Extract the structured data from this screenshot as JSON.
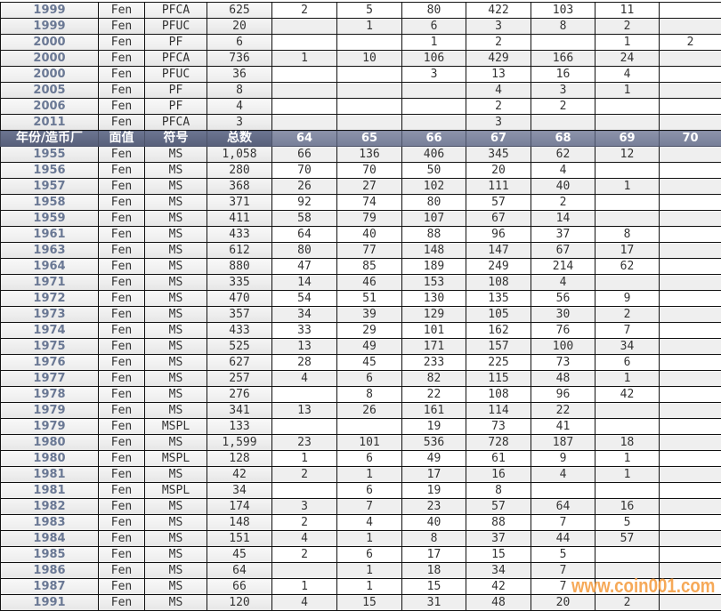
{
  "table": {
    "top_rows": [
      [
        "1999",
        "Fen",
        "PFCA",
        "625",
        "2",
        "5",
        "80",
        "422",
        "103",
        "11",
        ""
      ],
      [
        "1999",
        "Fen",
        "PFUC",
        "20",
        "",
        "1",
        "6",
        "3",
        "8",
        "2",
        ""
      ],
      [
        "2000",
        "Fen",
        "PF",
        "6",
        "",
        "",
        "1",
        "2",
        "",
        "1",
        "2"
      ],
      [
        "2000",
        "Fen",
        "PFCA",
        "736",
        "1",
        "10",
        "106",
        "429",
        "166",
        "24",
        ""
      ],
      [
        "2000",
        "Fen",
        "PFUC",
        "36",
        "",
        "",
        "3",
        "13",
        "16",
        "4",
        ""
      ],
      [
        "2005",
        "Fen",
        "PF",
        "8",
        "",
        "",
        "",
        "4",
        "3",
        "1",
        ""
      ],
      [
        "2006",
        "Fen",
        "PF",
        "4",
        "",
        "",
        "",
        "2",
        "2",
        "",
        ""
      ],
      [
        "2011",
        "Fen",
        "PFCA",
        "3",
        "",
        "",
        "",
        "3",
        "",
        "",
        ""
      ]
    ],
    "header": [
      "年份/造币厂",
      "面值",
      "符号",
      "总数",
      "64",
      "65",
      "66",
      "67",
      "68",
      "69",
      "70"
    ],
    "bottom_rows": [
      [
        "1955",
        "Fen",
        "MS",
        "1,058",
        "66",
        "136",
        "406",
        "345",
        "62",
        "12",
        ""
      ],
      [
        "1956",
        "Fen",
        "MS",
        "280",
        "70",
        "70",
        "50",
        "20",
        "4",
        "",
        ""
      ],
      [
        "1957",
        "Fen",
        "MS",
        "368",
        "26",
        "27",
        "102",
        "111",
        "40",
        "1",
        ""
      ],
      [
        "1958",
        "Fen",
        "MS",
        "371",
        "92",
        "74",
        "80",
        "57",
        "2",
        "",
        ""
      ],
      [
        "1959",
        "Fen",
        "MS",
        "411",
        "58",
        "79",
        "107",
        "67",
        "14",
        "",
        ""
      ],
      [
        "1961",
        "Fen",
        "MS",
        "433",
        "64",
        "40",
        "88",
        "96",
        "37",
        "8",
        ""
      ],
      [
        "1963",
        "Fen",
        "MS",
        "612",
        "80",
        "77",
        "148",
        "147",
        "67",
        "17",
        ""
      ],
      [
        "1964",
        "Fen",
        "MS",
        "880",
        "47",
        "85",
        "189",
        "249",
        "214",
        "62",
        ""
      ],
      [
        "1971",
        "Fen",
        "MS",
        "335",
        "14",
        "46",
        "153",
        "108",
        "4",
        "",
        ""
      ],
      [
        "1972",
        "Fen",
        "MS",
        "470",
        "54",
        "51",
        "130",
        "135",
        "56",
        "9",
        ""
      ],
      [
        "1973",
        "Fen",
        "MS",
        "357",
        "34",
        "39",
        "129",
        "105",
        "30",
        "2",
        ""
      ],
      [
        "1974",
        "Fen",
        "MS",
        "433",
        "33",
        "29",
        "101",
        "162",
        "76",
        "7",
        ""
      ],
      [
        "1975",
        "Fen",
        "MS",
        "525",
        "13",
        "49",
        "171",
        "157",
        "100",
        "34",
        ""
      ],
      [
        "1976",
        "Fen",
        "MS",
        "627",
        "28",
        "45",
        "233",
        "225",
        "73",
        "6",
        ""
      ],
      [
        "1977",
        "Fen",
        "MS",
        "257",
        "4",
        "6",
        "82",
        "115",
        "48",
        "1",
        ""
      ],
      [
        "1978",
        "Fen",
        "MS",
        "276",
        "",
        "8",
        "22",
        "108",
        "96",
        "42",
        ""
      ],
      [
        "1979",
        "Fen",
        "MS",
        "341",
        "13",
        "26",
        "161",
        "114",
        "22",
        "",
        ""
      ],
      [
        "1979",
        "Fen",
        "MSPL",
        "133",
        "",
        "",
        "19",
        "73",
        "41",
        "",
        ""
      ],
      [
        "1980",
        "Fen",
        "MS",
        "1,599",
        "23",
        "101",
        "536",
        "728",
        "187",
        "18",
        ""
      ],
      [
        "1980",
        "Fen",
        "MSPL",
        "128",
        "1",
        "6",
        "49",
        "61",
        "9",
        "1",
        ""
      ],
      [
        "1981",
        "Fen",
        "MS",
        "42",
        "2",
        "1",
        "17",
        "16",
        "4",
        "1",
        ""
      ],
      [
        "1981",
        "Fen",
        "MSPL",
        "34",
        "",
        "6",
        "19",
        "8",
        "",
        "",
        ""
      ],
      [
        "1982",
        "Fen",
        "MS",
        "174",
        "3",
        "7",
        "23",
        "57",
        "64",
        "16",
        ""
      ],
      [
        "1983",
        "Fen",
        "MS",
        "148",
        "2",
        "4",
        "40",
        "88",
        "7",
        "5",
        ""
      ],
      [
        "1984",
        "Fen",
        "MS",
        "151",
        "4",
        "1",
        "8",
        "37",
        "44",
        "57",
        ""
      ],
      [
        "1985",
        "Fen",
        "MS",
        "45",
        "2",
        "6",
        "17",
        "15",
        "5",
        "",
        ""
      ],
      [
        "1986",
        "Fen",
        "MS",
        "64",
        "",
        "1",
        "18",
        "34",
        "7",
        "",
        ""
      ],
      [
        "1987",
        "Fen",
        "MS",
        "66",
        "1",
        "1",
        "15",
        "42",
        "7",
        "",
        ""
      ],
      [
        "1991",
        "Fen",
        "MS",
        "120",
        "4",
        "15",
        "31",
        "48",
        "20",
        "2",
        ""
      ]
    ]
  },
  "watermark": "www.coin001.com",
  "colors": {
    "header_bg": "#5f6883",
    "year_text": "#6a7894",
    "watermark": "#f5a046"
  }
}
